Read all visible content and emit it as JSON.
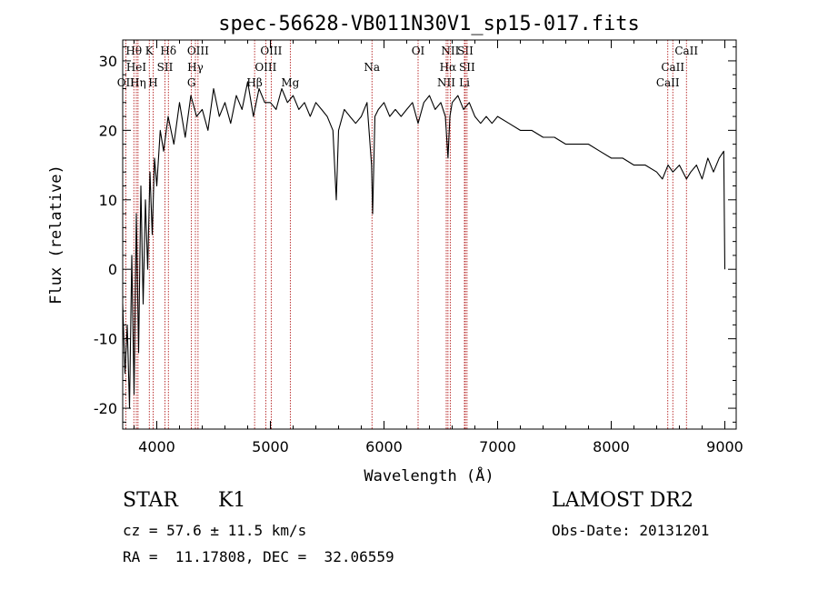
{
  "chart_data": {
    "type": "line",
    "title": "spec-56628-VB011N30V1_sp15-017.fits",
    "xlabel": "Wavelength (Å)",
    "ylabel": "Flux (relative)",
    "xlim": [
      3700,
      9100
    ],
    "ylim": [
      -23,
      33
    ],
    "xticks": [
      4000,
      5000,
      6000,
      7000,
      8000,
      9000
    ],
    "yticks": [
      -20,
      -10,
      0,
      10,
      20,
      30
    ],
    "grid": false,
    "series": [
      {
        "x": [
          3700,
          3720,
          3740,
          3760,
          3780,
          3800,
          3820,
          3840,
          3860,
          3880,
          3900,
          3920,
          3940,
          3960,
          3980,
          4000,
          4030,
          4060,
          4100,
          4150,
          4200,
          4250,
          4300,
          4350,
          4400,
          4450,
          4500,
          4550,
          4600,
          4650,
          4700,
          4750,
          4800,
          4850,
          4900,
          4950,
          5000,
          5050,
          5100,
          5150,
          5200,
          5250,
          5300,
          5350,
          5400,
          5450,
          5500,
          5550,
          5580,
          5600,
          5650,
          5700,
          5750,
          5800,
          5850,
          5890,
          5900,
          5920,
          5950,
          6000,
          6050,
          6100,
          6150,
          6200,
          6250,
          6300,
          6350,
          6400,
          6450,
          6500,
          6540,
          6563,
          6580,
          6600,
          6650,
          6700,
          6750,
          6800,
          6850,
          6900,
          6950,
          7000,
          7100,
          7200,
          7300,
          7400,
          7500,
          7600,
          7700,
          7800,
          7900,
          8000,
          8100,
          8200,
          8300,
          8400,
          8450,
          8500,
          8542,
          8600,
          8662,
          8700,
          8750,
          8800,
          8850,
          8900,
          8950,
          8990,
          9000
        ],
        "y": [
          -5,
          -15,
          -8,
          -20,
          2,
          -18,
          8,
          -12,
          12,
          -5,
          10,
          0,
          14,
          5,
          16,
          12,
          20,
          17,
          22,
          18,
          24,
          19,
          25,
          22,
          23,
          20,
          26,
          22,
          24,
          21,
          25,
          23,
          27,
          22,
          26,
          24,
          24,
          23,
          26,
          24,
          25,
          23,
          24,
          22,
          24,
          23,
          22,
          20,
          10,
          20,
          23,
          22,
          21,
          22,
          24,
          15,
          8,
          22,
          23,
          24,
          22,
          23,
          22,
          23,
          24,
          21,
          24,
          25,
          23,
          24,
          22,
          16,
          22,
          24,
          25,
          23,
          24,
          22,
          21,
          22,
          21,
          22,
          21,
          20,
          20,
          19,
          19,
          18,
          18,
          18,
          17,
          16,
          16,
          15,
          15,
          14,
          13,
          15,
          14,
          15,
          13,
          14,
          15,
          13,
          16,
          14,
          16,
          17,
          0
        ]
      }
    ],
    "line_markers": [
      {
        "label": "Hθ",
        "x": 3798,
        "row": 1
      },
      {
        "label": "OII",
        "x": 3727,
        "row": 3
      },
      {
        "label": "HeI",
        "x": 3820,
        "row": 2
      },
      {
        "label": "Hη",
        "x": 3835,
        "row": 3
      },
      {
        "label": "K",
        "x": 3934,
        "row": 1
      },
      {
        "label": "H",
        "x": 3968,
        "row": 3
      },
      {
        "label": "SII",
        "x": 4072,
        "row": 2
      },
      {
        "label": "Hδ",
        "x": 4102,
        "row": 1
      },
      {
        "label": "OIII",
        "x": 4363,
        "row": 1
      },
      {
        "label": "Hγ",
        "x": 4340,
        "row": 2
      },
      {
        "label": "G",
        "x": 4305,
        "row": 3
      },
      {
        "label": "Hβ",
        "x": 4861,
        "row": 3
      },
      {
        "label": "OIII",
        "x": 5007,
        "row": 1
      },
      {
        "label": "OIII",
        "x": 4959,
        "row": 2
      },
      {
        "label": "Mg",
        "x": 5175,
        "row": 3
      },
      {
        "label": "Na",
        "x": 5894,
        "row": 2
      },
      {
        "label": "OI",
        "x": 6300,
        "row": 1
      },
      {
        "label": "NII",
        "x": 6583,
        "row": 1
      },
      {
        "label": "Hα",
        "x": 6563,
        "row": 2
      },
      {
        "label": "NII",
        "x": 6548,
        "row": 3
      },
      {
        "label": "SII",
        "x": 6716,
        "row": 1
      },
      {
        "label": "SII",
        "x": 6731,
        "row": 2
      },
      {
        "label": "Li",
        "x": 6708,
        "row": 3
      },
      {
        "label": "CaII",
        "x": 8662,
        "row": 1
      },
      {
        "label": "CaII",
        "x": 8542,
        "row": 2
      },
      {
        "label": "CaII",
        "x": 8498,
        "row": 3
      }
    ]
  },
  "info": {
    "object_class": "STAR",
    "subclass": "K1",
    "survey": "LAMOST DR2",
    "cz": "cz = 57.6 ± 11.5 km/s",
    "obs_date": "Obs-Date: 20131201",
    "coords": "RA =  11.17808, DEC =  32.06559"
  },
  "colors": {
    "line": "#000000",
    "marker": "#aa0000",
    "background": "#ffffff"
  }
}
